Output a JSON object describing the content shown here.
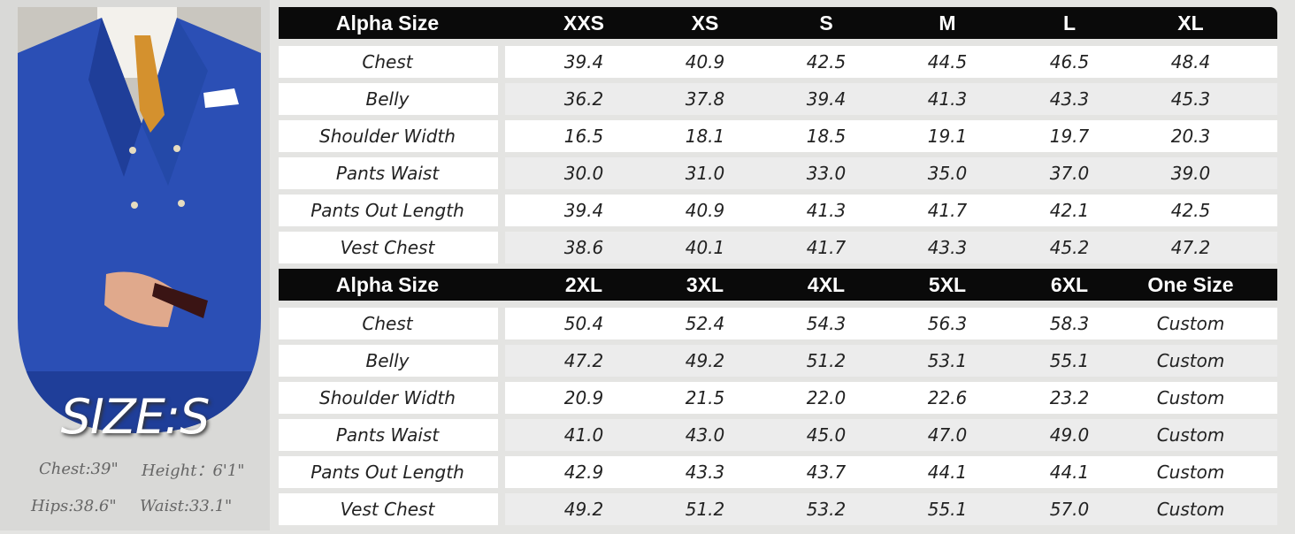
{
  "model": {
    "size_label": "SIZE:S",
    "stats": [
      "Chest:39\"",
      "Height：6'1\"",
      "Hips:38.6\"",
      "Waist:33.1\""
    ]
  },
  "tables": [
    {
      "header": [
        "Alpha Size",
        "XXS",
        "XS",
        "S",
        "M",
        "L",
        "XL"
      ],
      "rows": [
        [
          "Chest",
          "39.4",
          "40.9",
          "42.5",
          "44.5",
          "46.5",
          "48.4"
        ],
        [
          "Belly",
          "36.2",
          "37.8",
          "39.4",
          "41.3",
          "43.3",
          "45.3"
        ],
        [
          "Shoulder Width",
          "16.5",
          "18.1",
          "18.5",
          "19.1",
          "19.7",
          "20.3"
        ],
        [
          "Pants Waist",
          "30.0",
          "31.0",
          "33.0",
          "35.0",
          "37.0",
          "39.0"
        ],
        [
          "Pants Out Length",
          "39.4",
          "40.9",
          "41.3",
          "41.7",
          "42.1",
          "42.5"
        ],
        [
          "Vest Chest",
          "38.6",
          "40.1",
          "41.7",
          "43.3",
          "45.2",
          "47.2"
        ]
      ]
    },
    {
      "header": [
        "Alpha Size",
        "2XL",
        "3XL",
        "4XL",
        "5XL",
        "6XL",
        "One Size"
      ],
      "rows": [
        [
          "Chest",
          "50.4",
          "52.4",
          "54.3",
          "56.3",
          "58.3",
          "Custom"
        ],
        [
          "Belly",
          "47.2",
          "49.2",
          "51.2",
          "53.1",
          "55.1",
          "Custom"
        ],
        [
          "Shoulder Width",
          "20.9",
          "21.5",
          "22.0",
          "22.6",
          "23.2",
          "Custom"
        ],
        [
          "Pants Waist",
          "41.0",
          "43.0",
          "45.0",
          "47.0",
          "49.0",
          "Custom"
        ],
        [
          "Pants Out Length",
          "42.9",
          "43.3",
          "43.7",
          "44.1",
          "44.1",
          "Custom"
        ],
        [
          "Vest Chest",
          "49.2",
          "51.2",
          "53.2",
          "55.1",
          "57.0",
          "Custom"
        ]
      ]
    }
  ]
}
